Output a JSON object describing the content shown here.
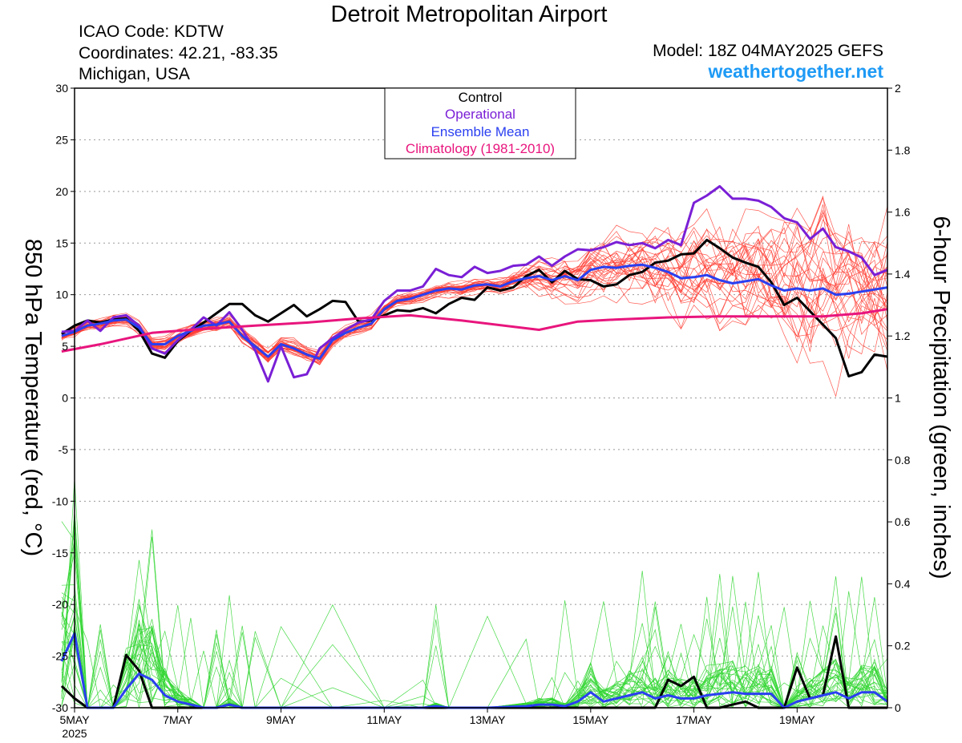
{
  "header": {
    "title": "Detroit Metropolitan Airport",
    "icao": "ICAO Code: KDTW",
    "coordinates": "Coordinates: 42.21, -83.35",
    "location": "Michigan, USA",
    "model": "Model: 18Z 04MAY2025 GEFS",
    "website": "weathertogether.net"
  },
  "colors": {
    "control": "#000000",
    "operational": "#7a1fd6",
    "ensemble_mean": "#2a3ff0",
    "climatology": "#e8157d",
    "members_temp": "#ff3b30",
    "members_precip": "#33d633",
    "website": "#1e9af5"
  },
  "chart_data": {
    "type": "line",
    "title": "Detroit Metropolitan Airport",
    "ylabel": "850 hPa Temperature (red, °C)",
    "y2label": "6-hour Precipitation (green, inches)",
    "ylim": [
      -30,
      30
    ],
    "y2lim": [
      0,
      2
    ],
    "yticks": [
      "30",
      "25",
      "20",
      "15",
      "10",
      "5",
      "0",
      "-5",
      "-10",
      "-15",
      "-20",
      "-25",
      "-30"
    ],
    "y2ticks": [
      "2",
      "1.8",
      "1.6",
      "1.4",
      "1.2",
      "1",
      "0.8",
      "0.6",
      "0.4",
      "0.2",
      "0"
    ],
    "xlim": [
      5.0,
      20.75
    ],
    "xticks": [
      {
        "day": 5,
        "label": "5MAY",
        "sublabel": "2025"
      },
      {
        "day": 7,
        "label": "7MAY"
      },
      {
        "day": 9,
        "label": "9MAY"
      },
      {
        "day": 11,
        "label": "11MAY"
      },
      {
        "day": 13,
        "label": "13MAY"
      },
      {
        "day": 15,
        "label": "15MAY"
      },
      {
        "day": 17,
        "label": "17MAY"
      },
      {
        "day": 19,
        "label": "19MAY"
      }
    ],
    "grid": true,
    "legend": {
      "placement": "top-center",
      "entries": [
        {
          "label": "Control",
          "color": "#000000"
        },
        {
          "label": "Operational",
          "color": "#7a1fd6"
        },
        {
          "label": "Ensemble Mean",
          "color": "#2a3ff0"
        },
        {
          "label": "Climatology (1981-2010)",
          "color": "#e8157d"
        }
      ]
    },
    "series": [
      {
        "name": "Control",
        "axis": "temp",
        "color": "#000000",
        "x": [
          4.75,
          5.0,
          5.25,
          5.5,
          5.75,
          6.0,
          6.25,
          6.5,
          6.75,
          7.0,
          7.25,
          7.5,
          7.75,
          8.0,
          8.25,
          8.5,
          8.75,
          9.0,
          9.25,
          9.5,
          9.75,
          10.0,
          10.25,
          10.5,
          10.75,
          11.0,
          11.25,
          11.5,
          11.75,
          12.0,
          12.25,
          12.5,
          12.75,
          13.0,
          13.25,
          13.5,
          13.75,
          14.0,
          14.25,
          14.5,
          14.75,
          15.0,
          15.25,
          15.5,
          15.75,
          16.0,
          16.25,
          16.5,
          16.75,
          17.0,
          17.25,
          17.5,
          17.75,
          18.0,
          18.25,
          18.5,
          18.75,
          19.0,
          19.25,
          19.5,
          19.75,
          20.0,
          20.25,
          20.5,
          20.75
        ],
        "y": [
          6.2,
          7.0,
          7.5,
          7.3,
          7.6,
          7.7,
          6.5,
          4.3,
          3.9,
          5.5,
          6.5,
          7.3,
          8.2,
          9.1,
          9.1,
          8.0,
          7.4,
          8.2,
          9.0,
          7.9,
          8.6,
          9.4,
          9.3,
          7.4,
          7.5,
          8.0,
          8.5,
          8.4,
          8.7,
          8.2,
          9.1,
          9.7,
          9.5,
          10.7,
          10.4,
          10.7,
          11.8,
          12.4,
          11.2,
          12.3,
          11.5,
          11.4,
          10.8,
          11.0,
          11.9,
          12.2,
          13.1,
          13.3,
          13.9,
          14.0,
          15.3,
          14.5,
          13.6,
          13.1,
          12.7,
          11.2,
          9.0,
          9.7,
          8.4,
          7.1,
          5.8,
          2.1,
          2.5,
          4.2,
          4.0
        ]
      },
      {
        "name": "Operational",
        "axis": "temp",
        "color": "#7a1fd6",
        "x": [
          4.75,
          5.0,
          5.25,
          5.5,
          5.75,
          6.0,
          6.25,
          6.5,
          6.75,
          7.0,
          7.25,
          7.5,
          7.75,
          8.0,
          8.25,
          8.5,
          8.75,
          9.0,
          9.25,
          9.5,
          9.75,
          10.0,
          10.25,
          10.5,
          10.75,
          11.0,
          11.25,
          11.5,
          11.75,
          12.0,
          12.25,
          12.5,
          12.75,
          13.0,
          13.25,
          13.5,
          13.75,
          14.0,
          14.25,
          14.5,
          14.75,
          15.0,
          15.25,
          15.5,
          15.75,
          16.0,
          16.25,
          16.5,
          16.75,
          17.0,
          17.25,
          17.5,
          17.75,
          18.0,
          18.25,
          18.5,
          18.75,
          19.0,
          19.25,
          19.5,
          19.75,
          20.0,
          20.25,
          20.5,
          20.75
        ],
        "y": [
          6.4,
          6.5,
          7.5,
          6.5,
          7.8,
          8.0,
          7.0,
          4.8,
          4.3,
          5.6,
          6.6,
          7.8,
          7.0,
          8.3,
          6.6,
          4.6,
          1.6,
          5.0,
          2.0,
          2.3,
          4.8,
          5.8,
          6.6,
          7.3,
          7.6,
          9.4,
          10.4,
          10.4,
          10.8,
          12.5,
          11.9,
          11.7,
          12.7,
          12.1,
          12.3,
          12.8,
          12.9,
          13.7,
          12.8,
          13.7,
          14.4,
          14.3,
          14.6,
          15.1,
          14.8,
          15.0,
          14.5,
          15.3,
          14.8,
          18.9,
          19.6,
          20.5,
          19.3,
          19.3,
          19.1,
          18.5,
          17.4,
          17.0,
          15.4,
          16.4,
          14.6,
          14.2,
          13.6,
          11.9,
          12.4
        ]
      },
      {
        "name": "Ensemble Mean",
        "axis": "temp",
        "color": "#2a3ff0",
        "x": [
          4.75,
          5.0,
          5.25,
          5.5,
          5.75,
          6.0,
          6.25,
          6.5,
          6.75,
          7.0,
          7.25,
          7.5,
          7.75,
          8.0,
          8.25,
          8.5,
          8.75,
          9.0,
          9.25,
          9.5,
          9.75,
          10.0,
          10.25,
          10.5,
          10.75,
          11.0,
          11.25,
          11.5,
          11.75,
          12.0,
          12.25,
          12.5,
          12.75,
          13.0,
          13.25,
          13.5,
          13.75,
          14.0,
          14.25,
          14.5,
          14.75,
          15.0,
          15.25,
          15.5,
          15.75,
          16.0,
          16.25,
          16.5,
          16.75,
          17.0,
          17.25,
          17.5,
          17.75,
          18.0,
          18.25,
          18.5,
          18.75,
          19.0,
          19.25,
          19.5,
          19.75,
          20.0,
          20.25,
          20.5,
          20.75
        ],
        "y": [
          6.0,
          6.4,
          7.0,
          7.2,
          7.5,
          7.6,
          6.8,
          5.2,
          5.2,
          6.0,
          6.5,
          7.0,
          7.1,
          7.4,
          6.0,
          5.0,
          4.0,
          5.2,
          4.8,
          4.2,
          3.8,
          5.6,
          6.3,
          6.8,
          7.2,
          8.6,
          9.4,
          9.6,
          10.0,
          10.4,
          10.6,
          10.5,
          10.9,
          11.0,
          10.8,
          11.3,
          11.6,
          11.8,
          11.4,
          11.8,
          11.4,
          12.4,
          12.7,
          12.6,
          12.8,
          12.9,
          12.6,
          12.2,
          11.6,
          11.7,
          11.9,
          11.4,
          11.1,
          11.3,
          11.5,
          10.9,
          10.4,
          10.6,
          10.4,
          10.6,
          10.0,
          10.1,
          10.3,
          10.5,
          10.7
        ]
      },
      {
        "name": "Climatology (1981-2010)",
        "axis": "temp",
        "color": "#e8157d",
        "x": [
          4.75,
          5.5,
          6.5,
          7.5,
          8.5,
          9.5,
          10.5,
          11.5,
          12.5,
          13.5,
          14.0,
          14.75,
          15.5,
          16.5,
          17.5,
          18.5,
          19.5,
          20.25,
          20.75
        ],
        "y": [
          4.5,
          5.2,
          6.3,
          6.7,
          7.0,
          7.3,
          7.7,
          8.0,
          7.5,
          6.9,
          6.6,
          7.4,
          7.6,
          7.8,
          7.9,
          7.9,
          7.9,
          8.2,
          8.6
        ]
      },
      {
        "name": "Control",
        "axis": "precip",
        "color": "#000000",
        "x": [
          4.75,
          5.0,
          5.25,
          5.5,
          5.75,
          6.0,
          6.25,
          6.5,
          6.75,
          7.0,
          7.25,
          7.5,
          7.75,
          8.0,
          8.25,
          8.5,
          8.75,
          9.0,
          16.0,
          16.25,
          16.5,
          16.75,
          17.0,
          17.25,
          17.5,
          17.75,
          18.0,
          18.25,
          18.5,
          18.75,
          19.0,
          19.25,
          19.5,
          19.75,
          20.0,
          20.25,
          20.5,
          20.75
        ],
        "y": [
          0.07,
          0.03,
          0.0,
          0.0,
          0.0,
          0.17,
          0.12,
          0.0,
          0.0,
          0.0,
          0.0,
          0.0,
          0.0,
          0.01,
          0.0,
          0.0,
          0.0,
          0.0,
          0.0,
          0.0,
          0.09,
          0.07,
          0.1,
          0.0,
          0.0,
          0.01,
          0.02,
          0.0,
          0.0,
          0.0,
          0.13,
          0.03,
          0.04,
          0.23,
          0.0,
          0.0,
          0.0,
          0.0
        ]
      },
      {
        "name": "Ensemble Mean",
        "axis": "precip",
        "color": "#2a3ff0",
        "x": [
          4.75,
          5.0,
          5.25,
          5.5,
          5.75,
          6.0,
          6.25,
          6.5,
          6.75,
          7.0,
          7.25,
          7.5,
          7.75,
          8.0,
          8.25,
          8.5,
          9.0,
          10.0,
          11.0,
          11.75,
          12.0,
          12.25,
          13.0,
          13.75,
          14.0,
          14.25,
          14.5,
          14.75,
          15.0,
          15.25,
          15.5,
          15.75,
          16.0,
          16.25,
          16.5,
          16.75,
          17.0,
          17.25,
          17.5,
          17.75,
          18.0,
          18.25,
          18.5,
          18.75,
          19.0,
          19.25,
          19.5,
          19.75,
          20.0,
          20.25,
          20.5,
          20.75
        ],
        "y": [
          0.15,
          0.24,
          0.0,
          0.0,
          0.0,
          0.06,
          0.11,
          0.09,
          0.04,
          0.02,
          0.01,
          0.0,
          0.0,
          0.01,
          0.0,
          0.0,
          0.0,
          0.0,
          0.0,
          0.0,
          0.005,
          0.0,
          0.0,
          0.005,
          0.01,
          0.01,
          0.005,
          0.02,
          0.05,
          0.02,
          0.03,
          0.04,
          0.05,
          0.03,
          0.04,
          0.03,
          0.03,
          0.04,
          0.045,
          0.05,
          0.045,
          0.045,
          0.045,
          0.0,
          0.02,
          0.03,
          0.04,
          0.05,
          0.03,
          0.05,
          0.05,
          0.02
        ]
      }
    ],
    "member_count": 30
  }
}
